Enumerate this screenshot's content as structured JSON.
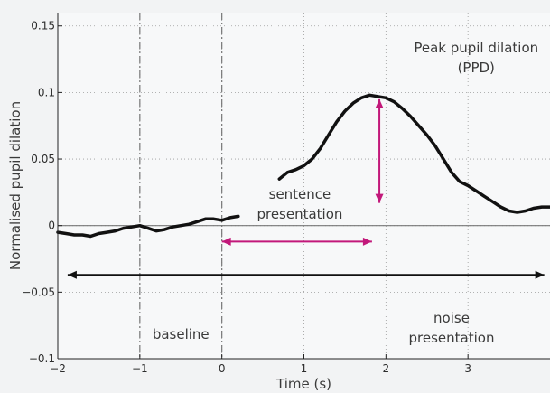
{
  "chart_data": {
    "type": "line",
    "xlabel": "Time (s)",
    "ylabel": "Normalised pupil dilation",
    "xlim": [
      -2,
      4
    ],
    "ylim": [
      -0.1,
      0.16
    ],
    "x_ticks": [
      -2,
      -1,
      0,
      1,
      2,
      3
    ],
    "x_tick_labels": [
      "−2",
      "−1",
      "0",
      "1",
      "2",
      "3"
    ],
    "y_ticks": [
      -0.1,
      -0.05,
      0,
      0.05,
      0.1,
      0.15
    ],
    "y_tick_labels": [
      "−0.1",
      "−0.05",
      "0",
      "0.05",
      "0.1",
      "0.15"
    ],
    "grid": "dotted",
    "line_color": "#111111",
    "series": [
      {
        "x": [
          -2.0,
          -1.9,
          -1.8,
          -1.7,
          -1.6,
          -1.5,
          -1.4,
          -1.3,
          -1.2,
          -1.1,
          -1.0,
          -0.9,
          -0.8,
          -0.7,
          -0.6,
          -0.5,
          -0.4,
          -0.3,
          -0.2,
          -0.1,
          0.0,
          0.1,
          0.2
        ],
        "y": [
          -0.005,
          -0.006,
          -0.007,
          -0.007,
          -0.008,
          -0.006,
          -0.005,
          -0.004,
          -0.002,
          -0.001,
          0.0,
          -0.002,
          -0.004,
          -0.003,
          -0.001,
          0.0,
          0.001,
          0.003,
          0.005,
          0.005,
          0.004,
          0.006,
          0.007
        ]
      },
      {
        "x": [
          0.7,
          0.8,
          0.9,
          1.0,
          1.1,
          1.2,
          1.3,
          1.4,
          1.5,
          1.6,
          1.7,
          1.8,
          1.9,
          2.0,
          2.1,
          2.2,
          2.3,
          2.4,
          2.5,
          2.6,
          2.7,
          2.8,
          2.9,
          3.0,
          3.1,
          3.2,
          3.3,
          3.4,
          3.5,
          3.6,
          3.7,
          3.8,
          3.9,
          4.0
        ],
        "y": [
          0.035,
          0.04,
          0.042,
          0.045,
          0.05,
          0.058,
          0.068,
          0.078,
          0.086,
          0.092,
          0.096,
          0.098,
          0.097,
          0.096,
          0.093,
          0.088,
          0.082,
          0.075,
          0.068,
          0.06,
          0.05,
          0.04,
          0.033,
          0.03,
          0.026,
          0.022,
          0.018,
          0.014,
          0.011,
          0.01,
          0.011,
          0.013,
          0.014,
          0.014
        ]
      }
    ],
    "vertical_markers": [
      {
        "x": -1,
        "color": "#777777",
        "style": "dashdot"
      },
      {
        "x": 0,
        "color": "#777777",
        "style": "dashdot"
      }
    ],
    "zero_line": {
      "y": 0,
      "color": "#777777"
    },
    "arrows": [
      {
        "name": "sentence-presentation-arrow",
        "x1": 0,
        "y1": -0.012,
        "x2": 1.83,
        "y2": -0.012,
        "color": "#c2187a",
        "heads": "both"
      },
      {
        "name": "ppd-arrow",
        "x1": 1.92,
        "y1": 0.095,
        "x2": 1.92,
        "y2": 0.017,
        "color": "#c2187a",
        "heads": "both"
      },
      {
        "name": "noise-presentation-arrow",
        "x1": -1.88,
        "y1": -0.037,
        "x2": 3.93,
        "y2": -0.037,
        "color": "#111111",
        "heads": "both"
      }
    ],
    "annotations": [
      {
        "name": "ppd-label",
        "lines": [
          "Peak pupil dilation",
          "(PPD)"
        ],
        "x": 3.1,
        "y": 0.13
      },
      {
        "name": "sentence-presentation-label",
        "lines": [
          "sentence",
          "presentation"
        ],
        "x": 0.95,
        "y": 0.02
      },
      {
        "name": "noise-presentation-label",
        "lines": [
          "noise",
          "presentation"
        ],
        "x": 2.8,
        "y": -0.073
      },
      {
        "name": "baseline-label",
        "lines": [
          "baseline"
        ],
        "x": -0.5,
        "y": -0.085
      }
    ]
  }
}
